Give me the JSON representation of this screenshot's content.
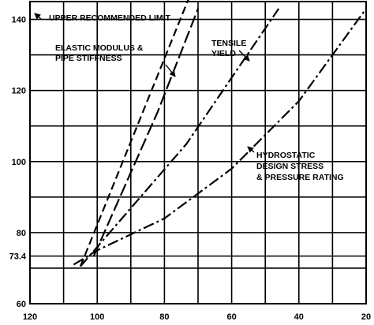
{
  "chart_data": {
    "type": "line",
    "x_reversed": true,
    "xlim": [
      120,
      20
    ],
    "ylim": [
      60,
      145
    ],
    "x_ticks": [
      120,
      100,
      80,
      60,
      40,
      20
    ],
    "y_ticks": [
      60,
      80,
      100,
      120,
      140
    ],
    "y_ref_line": 73.4,
    "y_ref_label": "73.4",
    "grid": true,
    "xlabel": "",
    "ylabel": "",
    "series": [
      {
        "label": "UPPER RECOMMENDED LIMIT",
        "style": "dashed",
        "x": [
          105,
          71
        ],
        "y": [
          70.5,
          150
        ]
      },
      {
        "label": "ELASTIC MODULUS & PIPE STIFFNESS",
        "style": "long-dash",
        "x": [
          101,
          82,
          70
        ],
        "y": [
          73.4,
          114,
          143
        ]
      },
      {
        "label": "TENSILE YIELD",
        "style": "dash-dot",
        "x": [
          105,
          73.4,
          46
        ],
        "y": [
          70.5,
          105,
          143
        ]
      },
      {
        "label": "HYDROSTATIC DESIGN STRESS & PRESSURE RATING",
        "style": "dash-dot",
        "x": [
          107,
          100,
          80,
          60,
          40,
          20
        ],
        "y": [
          71,
          75,
          84,
          98,
          117,
          143
        ]
      }
    ],
    "annotations": [
      {
        "lines": [
          "UPPER RECOMMENDED LIMIT"
        ]
      },
      {
        "lines": [
          "ELASTIC MODULUS &",
          "PIPE STIFFNESS"
        ]
      },
      {
        "lines": [
          "TENSILE",
          "YIELD"
        ]
      },
      {
        "lines": [
          "HYDROSTATIC",
          "DESIGN STRESS",
          "& PRESSURE RATING"
        ]
      }
    ]
  }
}
